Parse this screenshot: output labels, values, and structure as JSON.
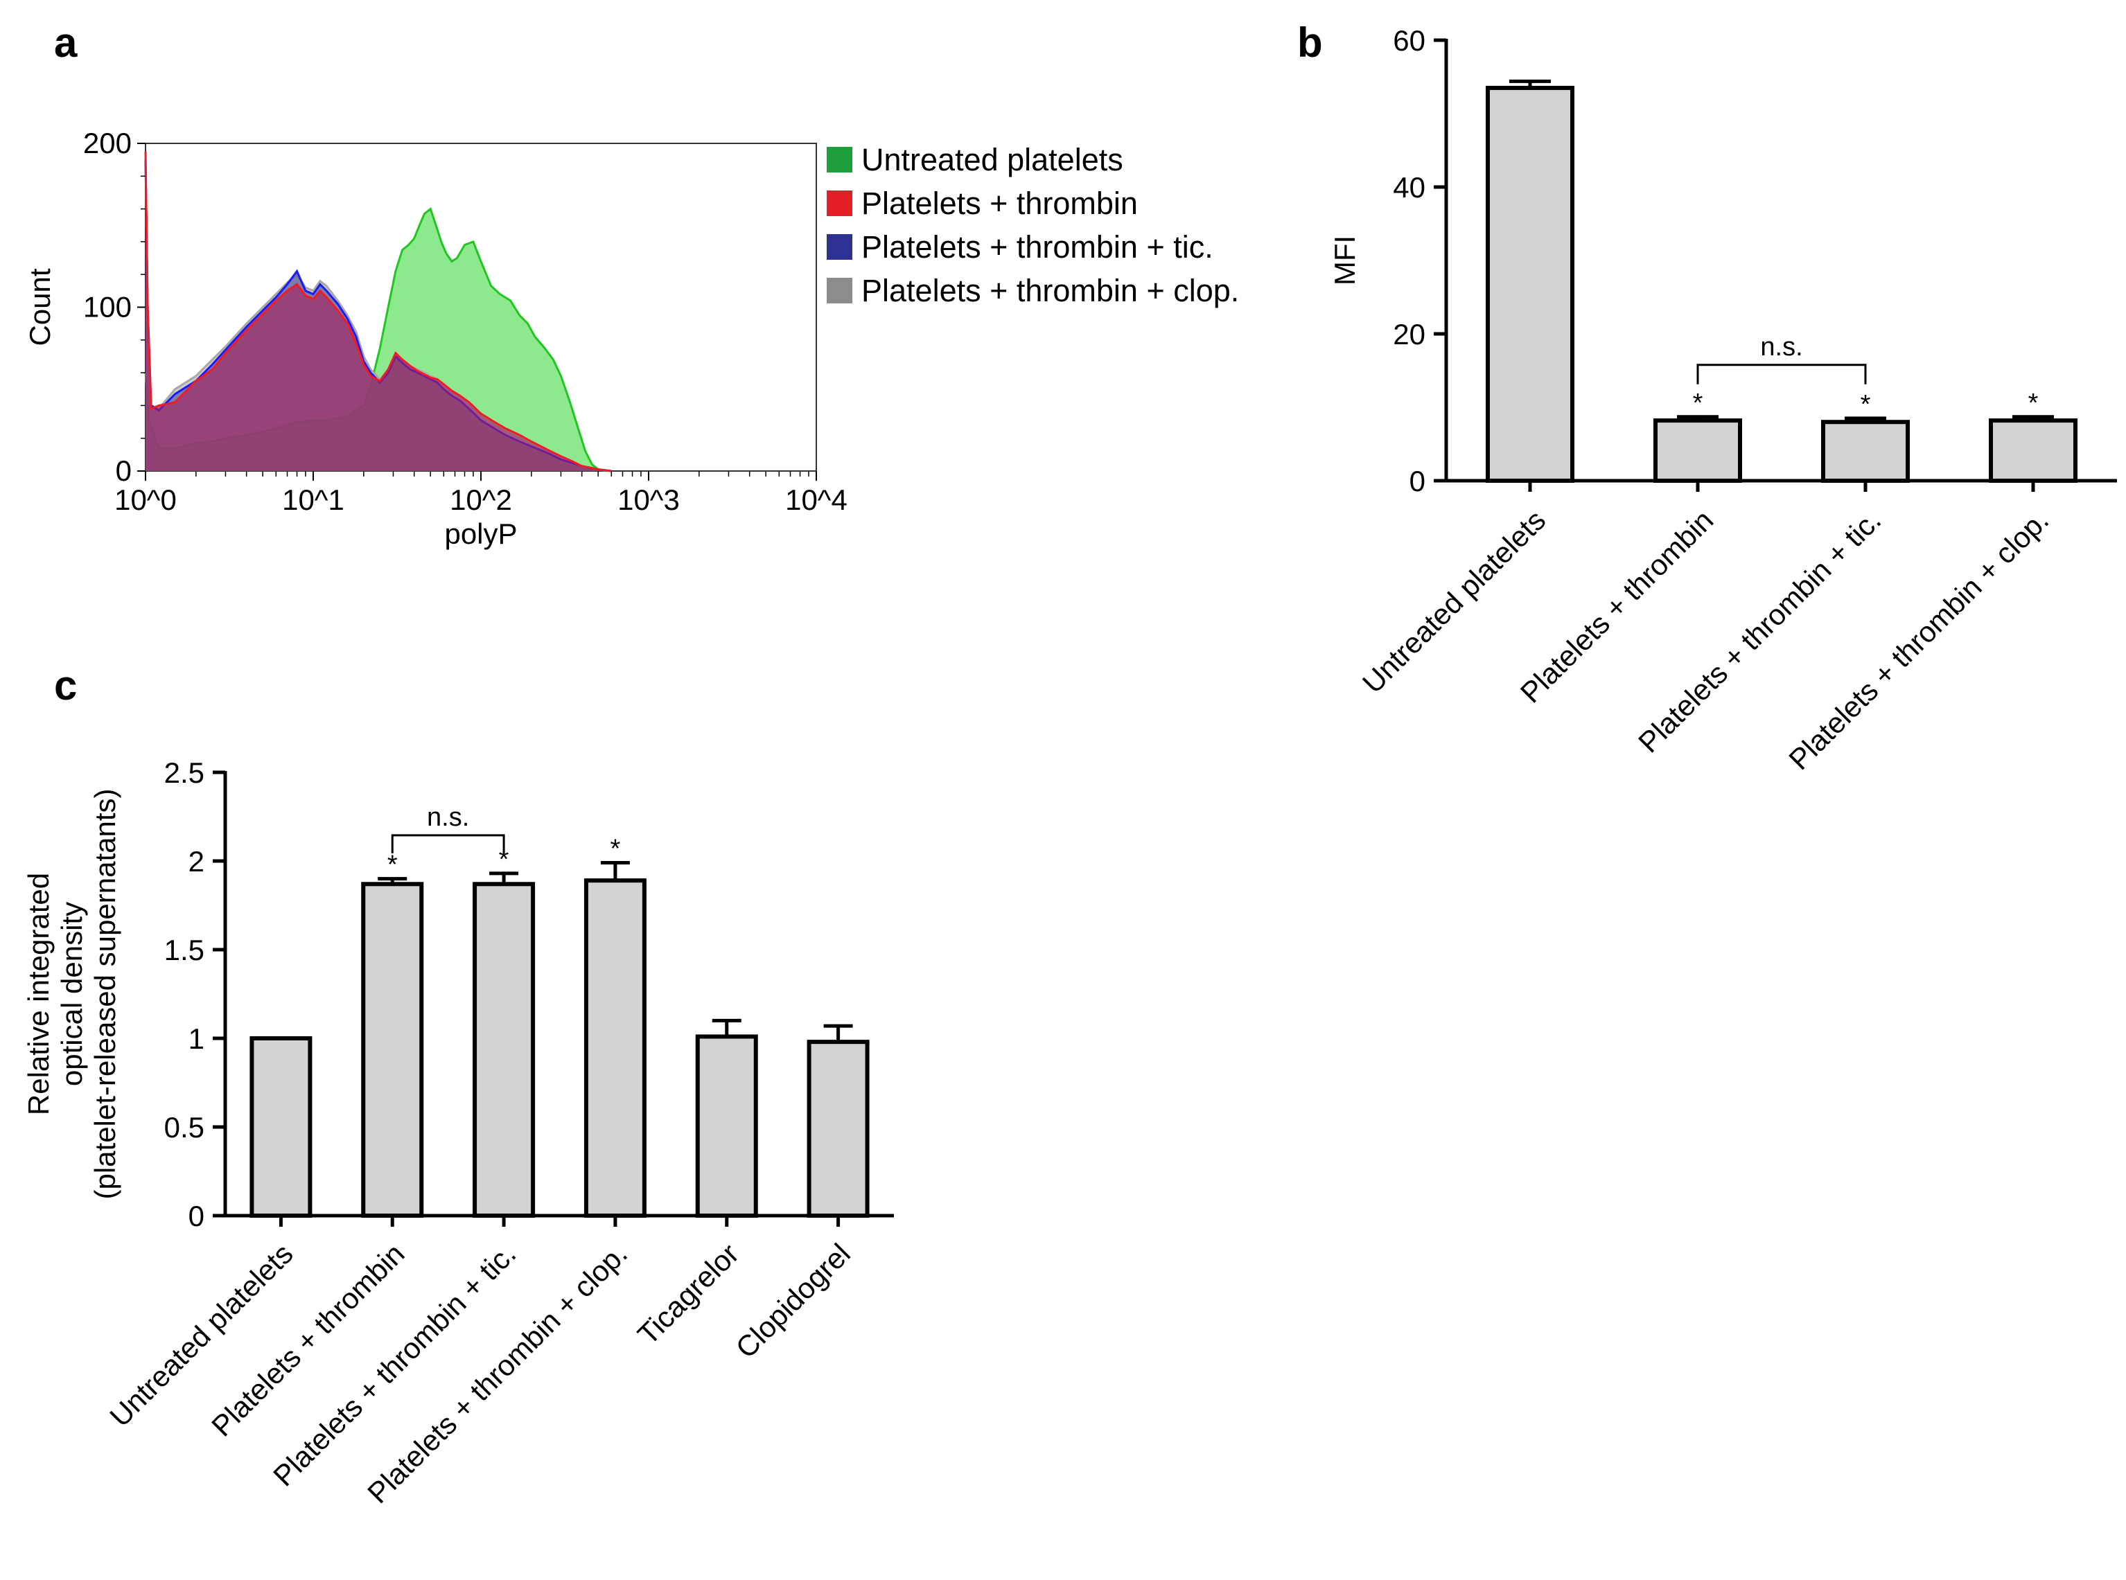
{
  "panels": {
    "a": "a",
    "b": "b",
    "c": "c"
  },
  "chart_data": [
    {
      "id": "a",
      "type": "area",
      "title": "",
      "xlabel": "polyP",
      "ylabel": "Count",
      "xscale": "log",
      "xlim": [
        1,
        10000
      ],
      "ylim": [
        0,
        200
      ],
      "xticks": [
        {
          "value": 1,
          "label": "10^0"
        },
        {
          "value": 10,
          "label": "10^1"
        },
        {
          "value": 100,
          "label": "10^2"
        },
        {
          "value": 1000,
          "label": "10^3"
        },
        {
          "value": 10000,
          "label": "10^4"
        }
      ],
      "yticks": [
        {
          "value": 0,
          "label": "0"
        },
        {
          "value": 100,
          "label": "100"
        },
        {
          "value": 200,
          "label": "200"
        }
      ],
      "legend_position": "right",
      "series": [
        {
          "name": "Untreated platelets",
          "fill": "#6de36d",
          "stroke": "#22c522",
          "swatch": "#1e9e3c",
          "points": [
            [
              1,
              60
            ],
            [
              1.05,
              30
            ],
            [
              1.2,
              14
            ],
            [
              1.5,
              14
            ],
            [
              2,
              17
            ],
            [
              2.5,
              18
            ],
            [
              3,
              20
            ],
            [
              4,
              22
            ],
            [
              5,
              24
            ],
            [
              6,
              26
            ],
            [
              7,
              28
            ],
            [
              8,
              30
            ],
            [
              9,
              30
            ],
            [
              10,
              31
            ],
            [
              12,
              31
            ],
            [
              14,
              32
            ],
            [
              16,
              33
            ],
            [
              18,
              37
            ],
            [
              20,
              40
            ],
            [
              22,
              52
            ],
            [
              25,
              75
            ],
            [
              28,
              100
            ],
            [
              31,
              122
            ],
            [
              34,
              135
            ],
            [
              37,
              138
            ],
            [
              40,
              142
            ],
            [
              43,
              150
            ],
            [
              46,
              157
            ],
            [
              50,
              160
            ],
            [
              54,
              150
            ],
            [
              58,
              140
            ],
            [
              62,
              133
            ],
            [
              67,
              128
            ],
            [
              72,
              130
            ],
            [
              80,
              138
            ],
            [
              90,
              140
            ],
            [
              100,
              128
            ],
            [
              115,
              113
            ],
            [
              130,
              108
            ],
            [
              150,
              104
            ],
            [
              170,
              95
            ],
            [
              190,
              90
            ],
            [
              210,
              82
            ],
            [
              240,
              75
            ],
            [
              270,
              68
            ],
            [
              300,
              58
            ],
            [
              340,
              42
            ],
            [
              380,
              26
            ],
            [
              420,
              12
            ],
            [
              460,
              4
            ],
            [
              500,
              1
            ],
            [
              560,
              0
            ]
          ]
        },
        {
          "name": "Platelets + thrombin + clop.",
          "fill": "#b0b0b0",
          "stroke": "#a8a8a8",
          "swatch": "#8c8c8c",
          "points": [
            [
              1,
              190
            ],
            [
              1.03,
              100
            ],
            [
              1.08,
              40
            ],
            [
              1.2,
              38
            ],
            [
              1.5,
              50
            ],
            [
              2,
              58
            ],
            [
              2.5,
              68
            ],
            [
              3,
              76
            ],
            [
              4,
              90
            ],
            [
              5,
              100
            ],
            [
              6,
              108
            ],
            [
              7,
              115
            ],
            [
              8,
              120
            ],
            [
              9,
              112
            ],
            [
              10,
              110
            ],
            [
              11,
              116
            ],
            [
              12,
              113
            ],
            [
              14,
              104
            ],
            [
              16,
              95
            ],
            [
              18,
              85
            ],
            [
              20,
              70
            ],
            [
              22,
              62
            ],
            [
              25,
              56
            ],
            [
              28,
              62
            ],
            [
              31,
              70
            ],
            [
              34,
              68
            ],
            [
              38,
              64
            ],
            [
              42,
              62
            ],
            [
              46,
              60
            ],
            [
              50,
              58
            ],
            [
              55,
              56
            ],
            [
              60,
              52
            ],
            [
              67,
              48
            ],
            [
              75,
              45
            ],
            [
              85,
              40
            ],
            [
              100,
              33
            ],
            [
              120,
              28
            ],
            [
              140,
              24
            ],
            [
              170,
              20
            ],
            [
              200,
              16
            ],
            [
              250,
              12
            ],
            [
              300,
              8
            ],
            [
              350,
              5
            ],
            [
              400,
              3
            ],
            [
              500,
              1
            ],
            [
              600,
              0
            ]
          ]
        },
        {
          "name": "Platelets + thrombin + tic.",
          "fill": "#4a4a9a",
          "stroke": "#1a1aff",
          "swatch": "#2e3192",
          "points": [
            [
              1,
              190
            ],
            [
              1.03,
              100
            ],
            [
              1.08,
              40
            ],
            [
              1.2,
              37
            ],
            [
              1.5,
              47
            ],
            [
              2,
              55
            ],
            [
              2.5,
              65
            ],
            [
              3,
              74
            ],
            [
              4,
              88
            ],
            [
              5,
              98
            ],
            [
              6,
              106
            ],
            [
              7,
              114
            ],
            [
              8,
              122
            ],
            [
              9,
              110
            ],
            [
              10,
              108
            ],
            [
              11,
              114
            ],
            [
              12,
              110
            ],
            [
              14,
              102
            ],
            [
              16,
              93
            ],
            [
              18,
              82
            ],
            [
              20,
              67
            ],
            [
              22,
              60
            ],
            [
              25,
              54
            ],
            [
              28,
              60
            ],
            [
              31,
              70
            ],
            [
              34,
              66
            ],
            [
              38,
              62
            ],
            [
              42,
              60
            ],
            [
              46,
              58
            ],
            [
              50,
              56
            ],
            [
              55,
              54
            ],
            [
              60,
              50
            ],
            [
              67,
              46
            ],
            [
              75,
              43
            ],
            [
              85,
              38
            ],
            [
              100,
              31
            ],
            [
              120,
              26
            ],
            [
              140,
              22
            ],
            [
              170,
              18
            ],
            [
              200,
              15
            ],
            [
              250,
              11
            ],
            [
              300,
              7
            ],
            [
              350,
              5
            ],
            [
              400,
              3
            ],
            [
              500,
              1
            ],
            [
              600,
              0
            ]
          ]
        },
        {
          "name": "Platelets + thrombin",
          "fill": "#a8205a",
          "stroke": "#ee1c24",
          "swatch": "#e31e24",
          "points": [
            [
              1,
              195
            ],
            [
              1.03,
              100
            ],
            [
              1.08,
              38
            ],
            [
              1.2,
              40
            ],
            [
              1.5,
              42
            ],
            [
              2,
              55
            ],
            [
              2.5,
              62
            ],
            [
              3,
              72
            ],
            [
              4,
              86
            ],
            [
              5,
              96
            ],
            [
              6,
              104
            ],
            [
              7,
              110
            ],
            [
              8,
              114
            ],
            [
              9,
              107
            ],
            [
              10,
              105
            ],
            [
              11,
              110
            ],
            [
              12,
              106
            ],
            [
              14,
              98
            ],
            [
              16,
              90
            ],
            [
              18,
              78
            ],
            [
              20,
              65
            ],
            [
              22,
              58
            ],
            [
              25,
              55
            ],
            [
              28,
              62
            ],
            [
              31,
              72
            ],
            [
              34,
              68
            ],
            [
              38,
              64
            ],
            [
              42,
              61
            ],
            [
              46,
              59
            ],
            [
              50,
              57
            ],
            [
              55,
              56
            ],
            [
              60,
              53
            ],
            [
              67,
              49
            ],
            [
              75,
              46
            ],
            [
              85,
              42
            ],
            [
              100,
              35
            ],
            [
              120,
              30
            ],
            [
              140,
              26
            ],
            [
              170,
              22
            ],
            [
              200,
              18
            ],
            [
              250,
              13
            ],
            [
              300,
              9
            ],
            [
              350,
              6
            ],
            [
              400,
              3
            ],
            [
              500,
              1
            ],
            [
              600,
              0
            ]
          ]
        }
      ]
    },
    {
      "id": "b",
      "type": "bar",
      "title": "",
      "xlabel": "",
      "ylabel": "MFI",
      "ylim": [
        0,
        60
      ],
      "yticks": [
        0,
        20,
        40,
        60
      ],
      "categories": [
        "Untreated platelets",
        "Platelets + thrombin",
        "Platelets + thrombin + tic.",
        "Platelets + thrombin + clop."
      ],
      "values": [
        53.5,
        8.2,
        8.0,
        8.2
      ],
      "errors": [
        0.9,
        0.5,
        0.5,
        0.5
      ],
      "significance": [
        "",
        "*",
        "*",
        "*"
      ],
      "brackets": [
        {
          "from": 1,
          "to": 2,
          "label": "n.s."
        }
      ]
    },
    {
      "id": "c",
      "type": "bar",
      "title": "",
      "xlabel": "",
      "ylabel": [
        "Relative integrated",
        "optical density",
        "(platelet-released supernatants)"
      ],
      "ylim": [
        0,
        2.5
      ],
      "yticks": [
        {
          "value": 0,
          "label": "0"
        },
        {
          "value": 0.5,
          "label": "0.5"
        },
        {
          "value": 1,
          "label": "1"
        },
        {
          "value": 1.5,
          "label": "1.5"
        },
        {
          "value": 2,
          "label": "2"
        },
        {
          "value": 2.5,
          "label": "2.5"
        }
      ],
      "categories": [
        "Untreated platelets",
        "Platelets + thrombin",
        "Platelets + thrombin + tic.",
        "Platelets + thrombin + clop.",
        "Ticagrelor",
        "Clopidogrel"
      ],
      "values": [
        1.0,
        1.87,
        1.87,
        1.89,
        1.01,
        0.98
      ],
      "errors": [
        0,
        0.03,
        0.06,
        0.1,
        0.09,
        0.09
      ],
      "significance": [
        "",
        "*",
        "*",
        "*",
        "",
        ""
      ],
      "brackets": [
        {
          "from": 1,
          "to": 2,
          "label": "n.s."
        }
      ]
    }
  ]
}
